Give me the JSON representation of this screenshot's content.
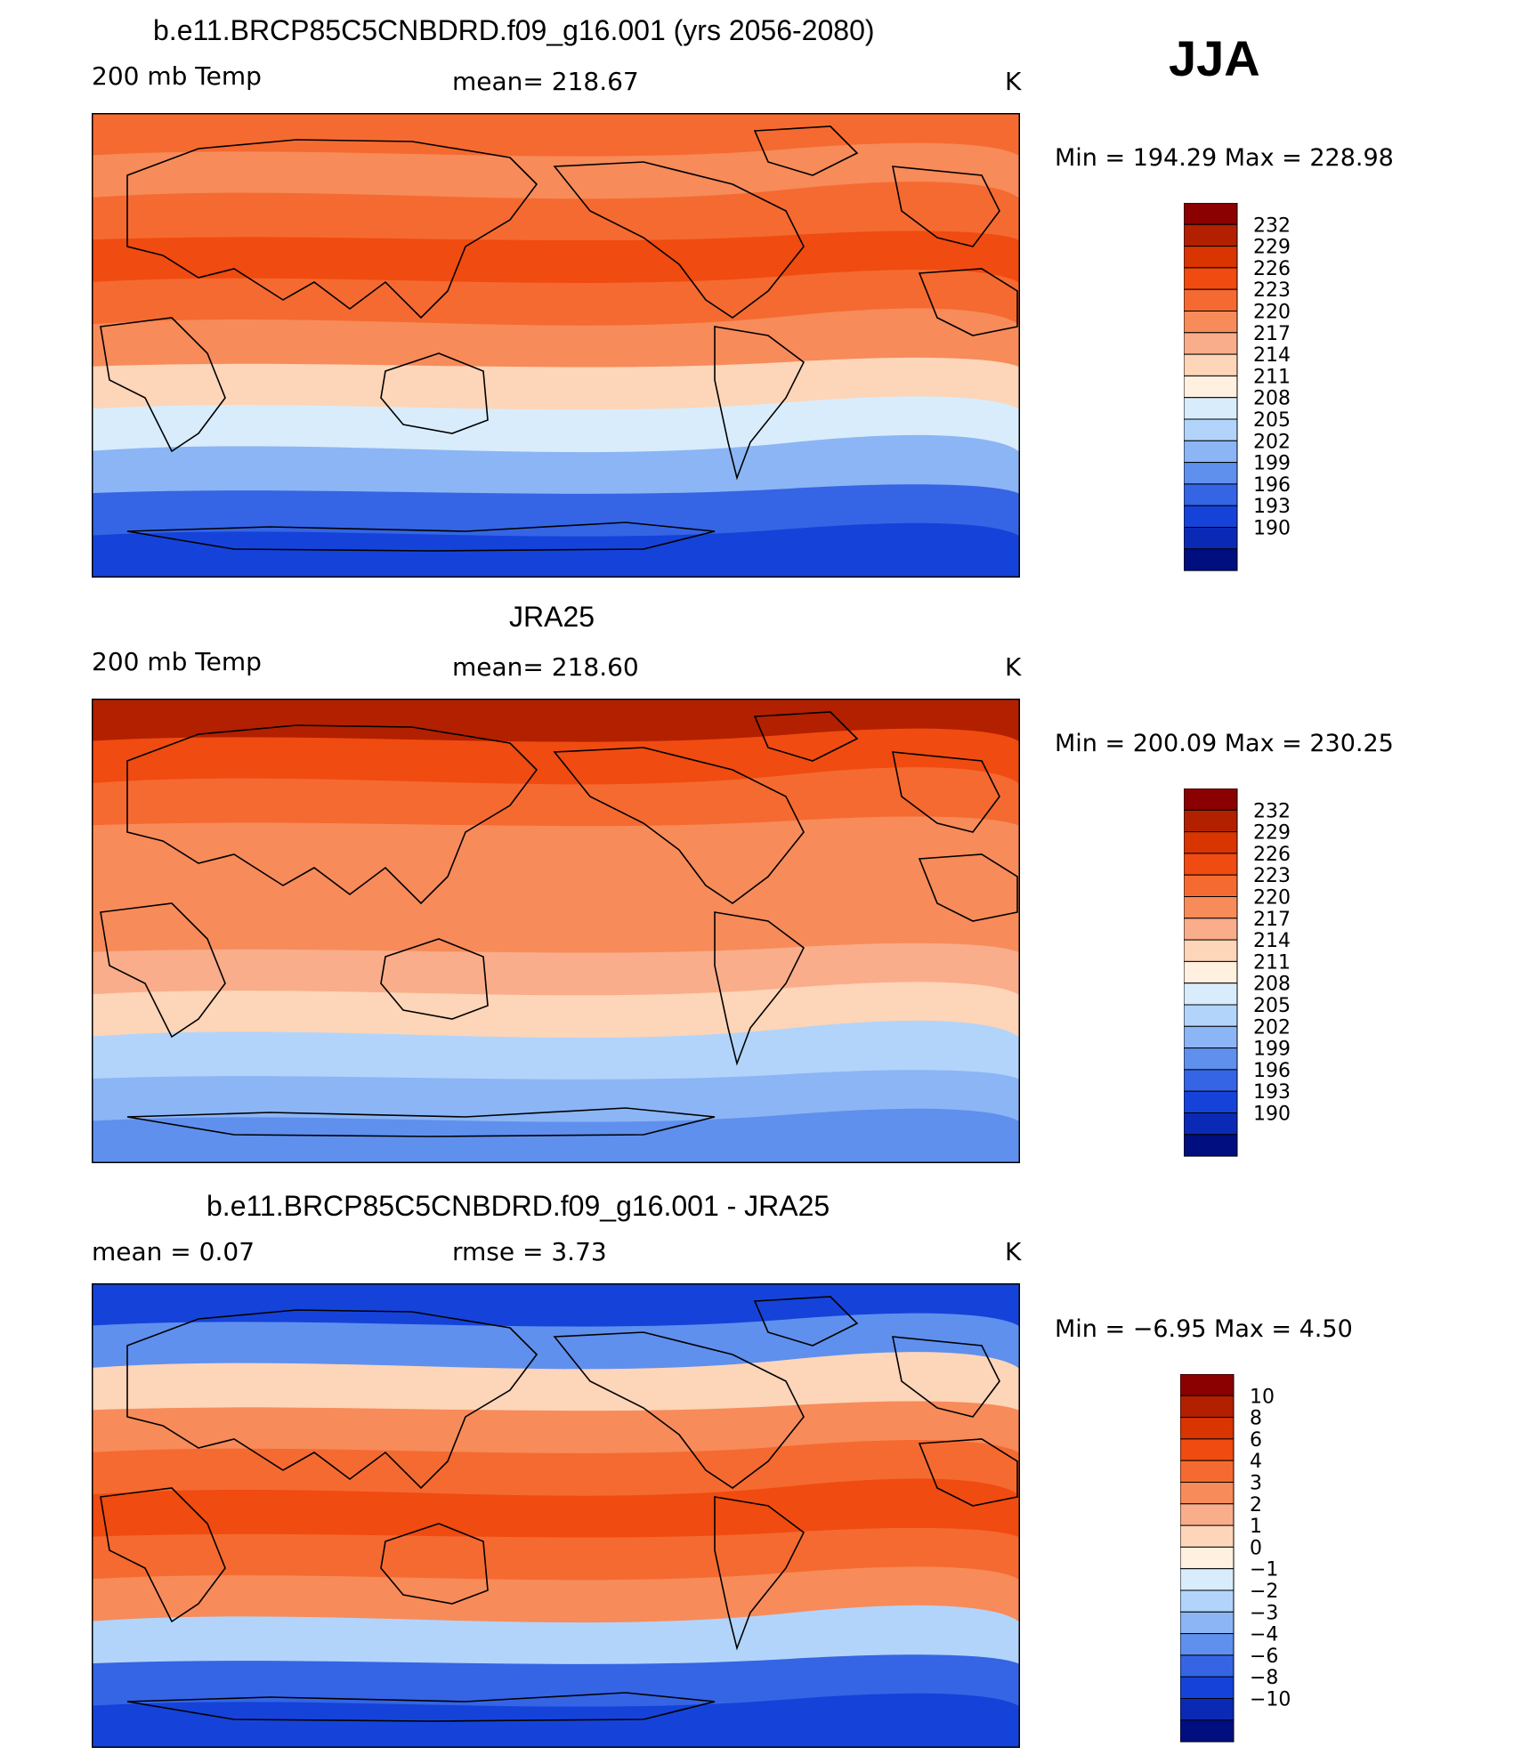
{
  "season": "JJA",
  "panels": [
    {
      "title": "b.e11.BRCP85C5CNBDRD.f09_g16.001 (yrs 2056-2080)",
      "left_label": "200 mb Temp",
      "center_label": "mean=  218.67",
      "right_label": "K",
      "minmax": "Min  =  194.29  Max  =  228.98",
      "colorbar": {
        "labels": [
          "232",
          "229",
          "226",
          "223",
          "220",
          "217",
          "214",
          "211",
          "208",
          "205",
          "202",
          "199",
          "196",
          "193",
          "190"
        ],
        "colors": [
          "#8b0000",
          "#b22000",
          "#d93500",
          "#f04b10",
          "#f56a30",
          "#f78b5a",
          "#f9ad8a",
          "#fdd5b8",
          "#fff0e0",
          "#d9ecfb",
          "#b2d4fa",
          "#8bb5f5",
          "#5f90ee",
          "#3565e4",
          "#1543d9",
          "#0a2ab5",
          "#000e80"
        ]
      },
      "bands": [
        "#f56a30",
        "#f78b5a",
        "#f56a30",
        "#f04b10",
        "#f56a30",
        "#f78b5a",
        "#fdd5b8",
        "#d9ecfb",
        "#8bb5f5",
        "#3565e4",
        "#1543d9"
      ]
    },
    {
      "title": "JRA25",
      "left_label": "200 mb Temp",
      "center_label": "mean=  218.60",
      "right_label": "K",
      "minmax": "Min  =  200.09  Max  =  230.25",
      "colorbar": {
        "labels": [
          "232",
          "229",
          "226",
          "223",
          "220",
          "217",
          "214",
          "211",
          "208",
          "205",
          "202",
          "199",
          "196",
          "193",
          "190"
        ],
        "colors": [
          "#8b0000",
          "#b22000",
          "#d93500",
          "#f04b10",
          "#f56a30",
          "#f78b5a",
          "#f9ad8a",
          "#fdd5b8",
          "#fff0e0",
          "#d9ecfb",
          "#b2d4fa",
          "#8bb5f5",
          "#5f90ee",
          "#3565e4",
          "#1543d9",
          "#0a2ab5",
          "#000e80"
        ]
      },
      "bands": [
        "#b22000",
        "#f04b10",
        "#f56a30",
        "#f78b5a",
        "#f78b5a",
        "#f78b5a",
        "#f9ad8a",
        "#fdd5b8",
        "#b2d4fa",
        "#8bb5f5",
        "#5f90ee"
      ]
    },
    {
      "title": "b.e11.BRCP85C5CNBDRD.f09_g16.001 - JRA25",
      "left_label": "mean =     0.07",
      "center_label": "rmse =     3.73",
      "right_label": "K",
      "minmax": "Min  =    −6.95  Max  =     4.50",
      "colorbar": {
        "labels": [
          "10",
          "8",
          "6",
          "4",
          "3",
          "2",
          "1",
          "0",
          "−1",
          "−2",
          "−3",
          "−4",
          "−6",
          "−8",
          "−10"
        ],
        "colors": [
          "#8b0000",
          "#b22000",
          "#d93500",
          "#f04b10",
          "#f56a30",
          "#f78b5a",
          "#f9ad8a",
          "#fdd5b8",
          "#fff0e0",
          "#d9ecfb",
          "#b2d4fa",
          "#8bb5f5",
          "#5f90ee",
          "#3565e4",
          "#1543d9",
          "#0a2ab5",
          "#000e80"
        ]
      },
      "bands": [
        "#1543d9",
        "#5f90ee",
        "#fdd5b8",
        "#f78b5a",
        "#f56a30",
        "#f04b10",
        "#f56a30",
        "#f78b5a",
        "#b2d4fa",
        "#3565e4",
        "#1543d9"
      ]
    }
  ]
}
